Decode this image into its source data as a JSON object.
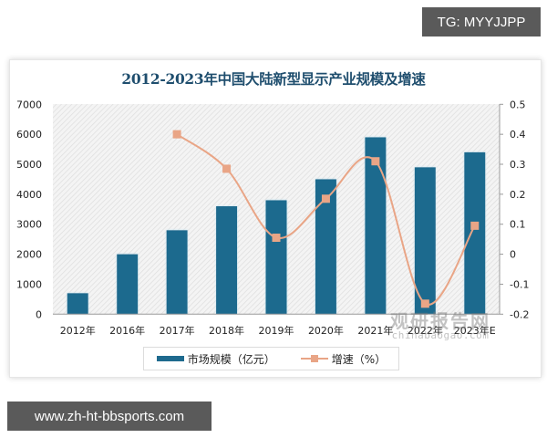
{
  "badges": {
    "top": "TG: MYYJJPP",
    "bottom": "www.zh-ht-bbsports.com"
  },
  "watermark": {
    "cn": "观研报告网",
    "en": "chinabaogao.com"
  },
  "colors": {
    "bar": "#1e6a8e",
    "line": "#e9a586",
    "title": "#1f4e6e",
    "badge_bg": "#5a5a5a"
  },
  "chart_data": {
    "type": "bar+line",
    "title": "2012-2023年中国大陆新型显示产业规模及增速",
    "categories": [
      "2012年",
      "2016年",
      "2017年",
      "2018年",
      "2019年",
      "2020年",
      "2021年",
      "2022年",
      "2023年E"
    ],
    "series": [
      {
        "name": "市场规模（亿元）",
        "type": "bar",
        "axis": "left",
        "values": [
          700,
          2000,
          2800,
          3600,
          3800,
          4500,
          5900,
          4900,
          5400
        ]
      },
      {
        "name": "增速（%）",
        "type": "line",
        "axis": "right",
        "values": [
          null,
          null,
          0.4,
          0.285,
          0.055,
          0.185,
          0.31,
          -0.165,
          0.095
        ]
      }
    ],
    "left_axis": {
      "ylim": [
        0,
        7000
      ],
      "ticks": [
        "7000",
        "6000",
        "5000",
        "4000",
        "3000",
        "2000",
        "1000",
        "0"
      ]
    },
    "right_axis": {
      "ylim": [
        -0.2,
        0.5
      ],
      "ticks": [
        "0.5",
        "0.4",
        "0.3",
        "0.2",
        "0.1",
        "0",
        "-0.1",
        "-0.2"
      ]
    },
    "xlabel": "",
    "ylabel": "",
    "legend": {
      "position": "bottom",
      "entries": [
        "市场规模（亿元）",
        "增速（%）"
      ]
    },
    "grid": false
  }
}
